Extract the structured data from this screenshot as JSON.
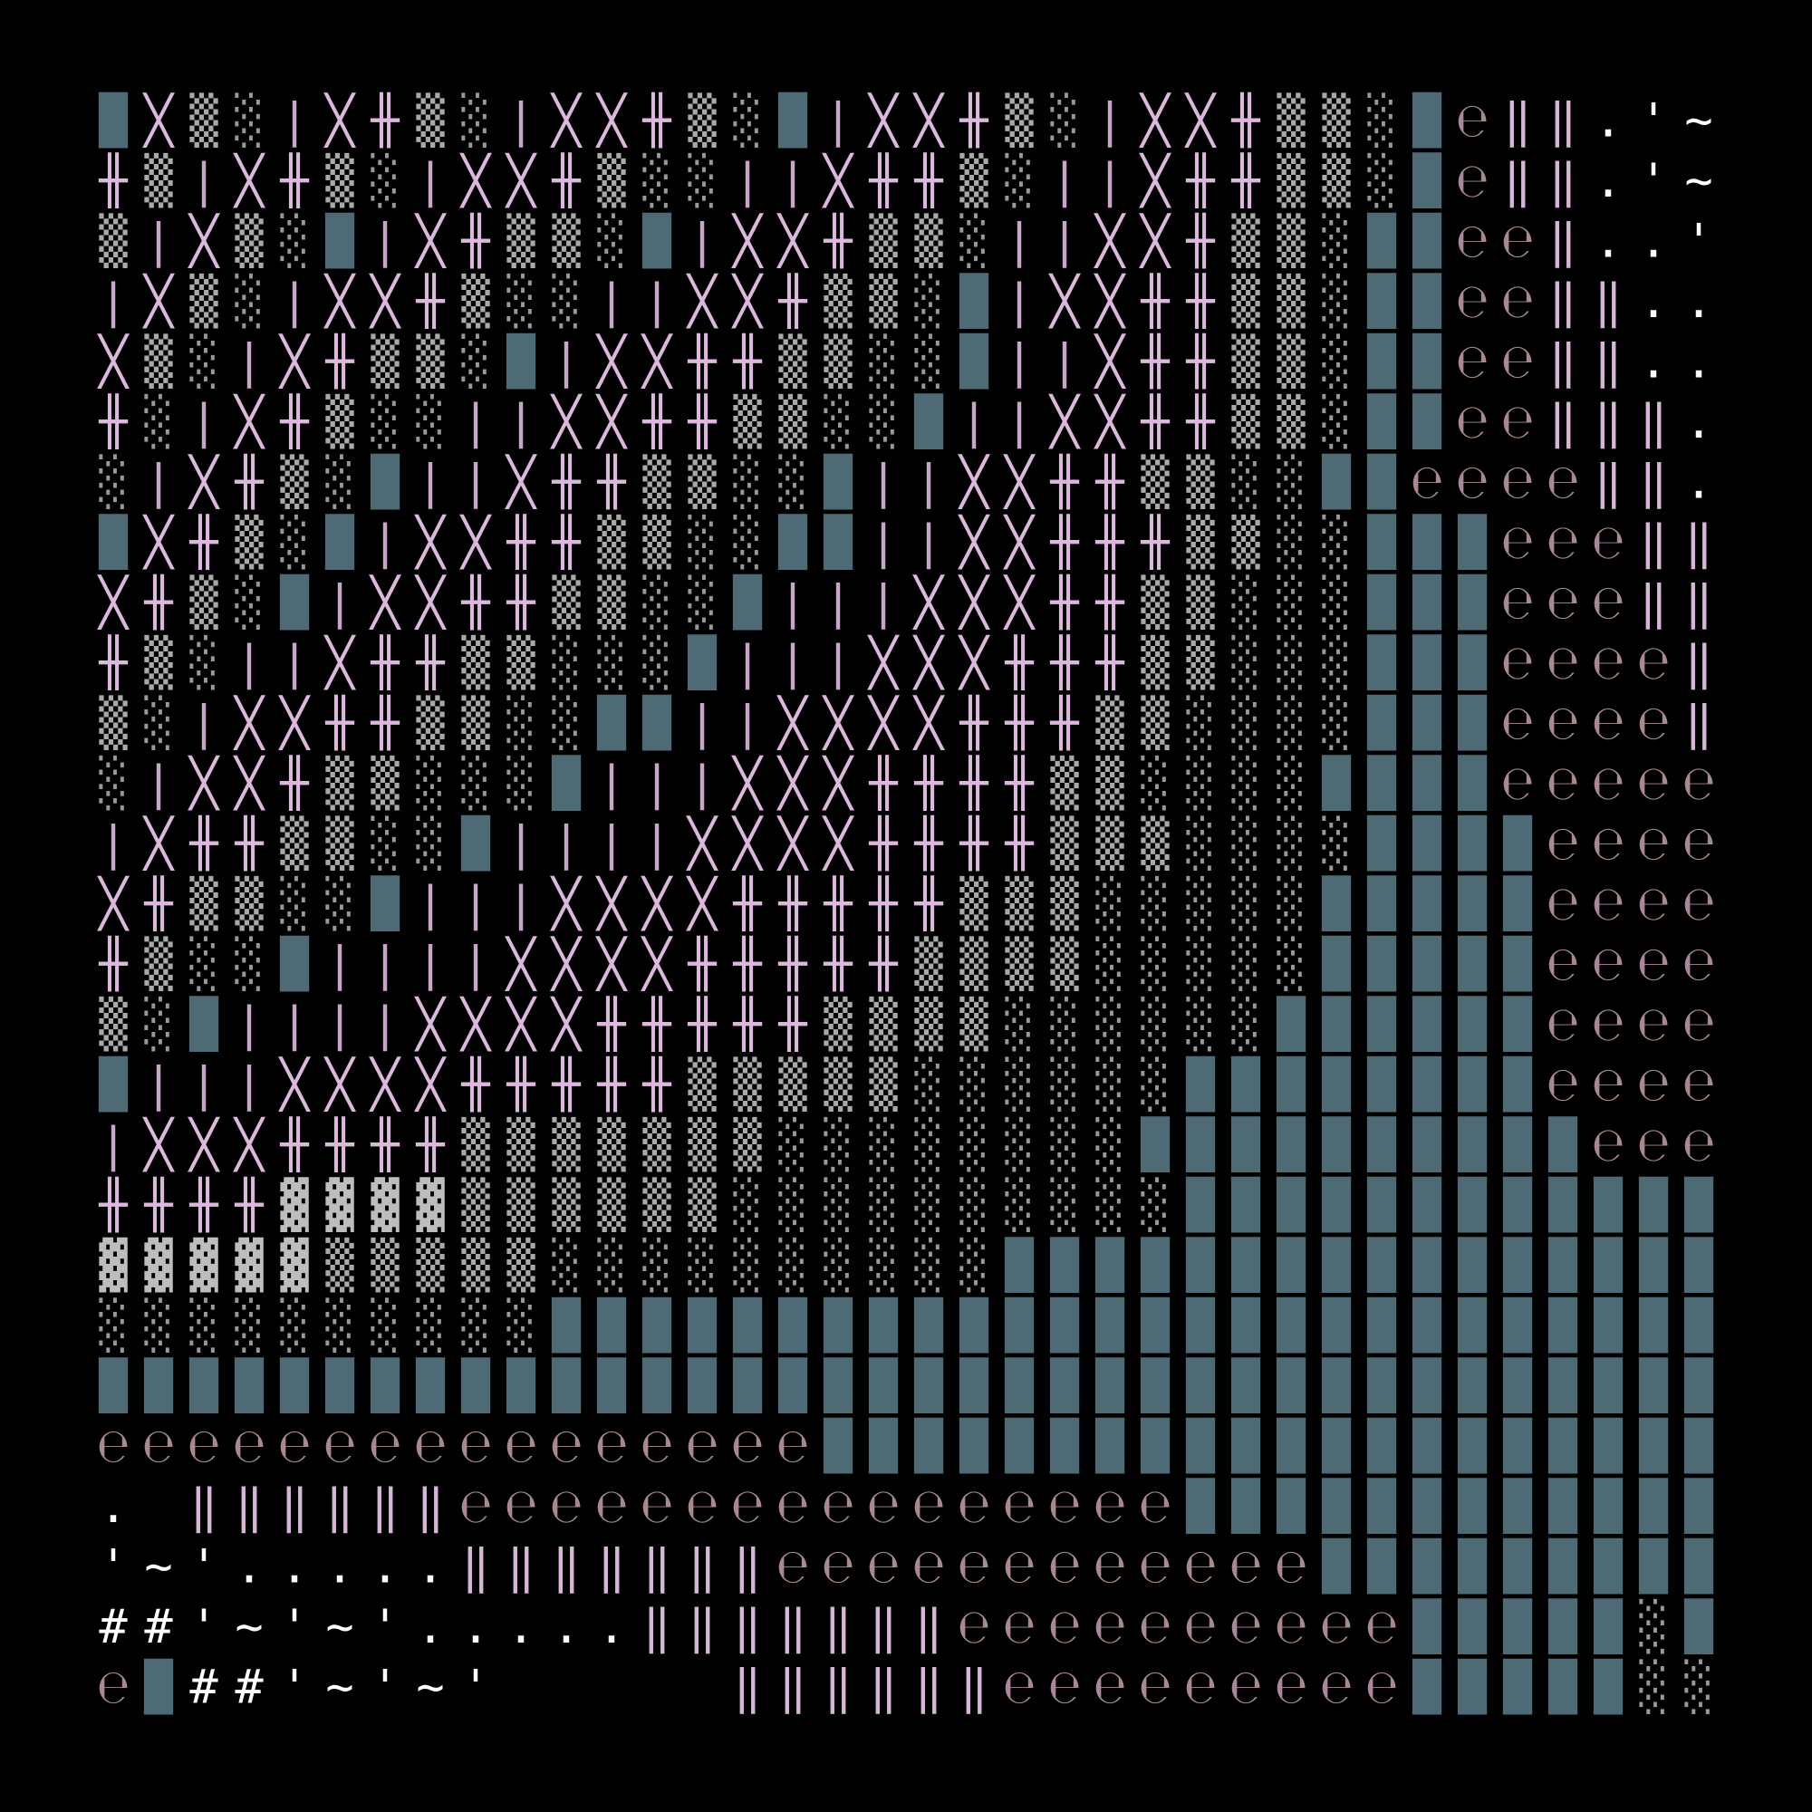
{
  "art": {
    "rows": [
      "█╳▒░|╳╫▒░|╳╳╫▒░█|╳╳╫▒░|╳╳╫▒▒░█℮‖‖.'~",
      "╫▒|╳╫▒░|╳╳╫▒░░||╳╫╫▒░||╳╫╫▒▒░█℮‖‖.'~",
      "▒|╳▒░█|╳╫▒▒░█|╳╳╫▒▒░||╳╳╫▒▒░██℮℮‖..'",
      "|╳▒░|╳╳╫▒░░||╳╳╫▒▒░█|╳╳╫╫▒▒░██℮℮‖‖..",
      "╳▒░|╳╫▒▒░█|╳╳╫╫▒▒░░█||╳╫╫▒▒░██℮℮‖‖..",
      "╫░|╳╫▒░░||╳╳╫╫▒▒░░█||╳╳╫╫▒▒░██℮℮‖‖‖.",
      "░|╳╫▒░█||╳╫╫▒▒░░█||╳╳╫╫▒▒░░██℮℮℮℮‖‖.",
      "█╳╫▒░█|╳╳╫╫▒▒░░██||╳╳╫╫╫▒▒░░███℮℮℮‖‖",
      "╳╫▒░█|╳╳╫╫▒▒░░█|||╳╳╳╫╫▒▒░░░███℮℮℮‖‖",
      "╫▒░||╳╫╫▒▒░░░█|||╳╳╳╫╫╫▒▒░░░███℮℮℮℮‖",
      "▒░|╳╳╫╫▒▒░░██||╳╳╳╳╫╫╫▒▒░░░░███℮℮℮℮‖",
      "░|╳╳╫▒▒░░░█|||╳╳╳╫╫╫╫▒▒░░░░████℮℮℮℮℮",
      "|╳╫╫▒▒░░█||||╳╳╳╳╫╫╫╫▒▒▒░░░░████℮℮℮℮",
      "╳╫▒▒░░█|||╳╳╳╳╫╫╫╫╫▒▒▒░░░░░█████℮℮℮℮",
      "╫▒░░█||||╳╳╳╳╫╫╫╫╫▒▒▒▒░░░░░█████℮℮℮℮",
      "▒░█||||╳╳╳╳╫╫╫╫╫▒▒▒▒░░░░░░██████℮℮℮℮",
      "█|||╳╳╳╳╫╫╫╫╫▒▒▒▒▒░░░░░░████████℮℮℮℮",
      "|╳╳╳╫╫╫╫▒▒▒▒▒▒▒░░░░░░░░██████████℮℮℮",
      "╫╫╫╫▓▓▓▓▒▒▒▒▒▒░░░░░░░░░░████████████",
      "▓▓▓▓▓▒▒▒▒▒░░░░░░░░░░████████████████",
      "░░░░░░░░░░██████████████████████████",
      "████████████████████████████████████",
      "℮℮℮℮℮℮℮℮℮℮℮℮℮℮℮℮████████████████████",
      ". ‖‖‖‖‖‖℮℮℮℮℮℮℮℮℮℮℮℮℮℮℮℮████████████",
      "'~'.....‖‖‖‖‖‖‖℮℮℮℮℮℮℮℮℮℮℮℮█████████",
      "##'~'~'.....‖‖‖‖‖‖‖℮℮℮℮℮℮℮℮℮℮█████░█",
      "℮█##'~'~'     ‖‖‖‖‖‖℮℮℮℮℮℮℮℮℮█████░░"
    ],
    "palette": {
      "█": "#4d6a75",
      "▓": "#bdbdbd",
      "▒": "#a9a9a9",
      "░": "#999999",
      "╳": "#dcb8dc",
      "╫": "#dcb8dc",
      "|": "#c7a6c7",
      "‖": "#d6b6d6",
      "℮": "#a88898",
      ".": "#ffffff",
      "'": "#ffffff",
      "~": "#ffffff",
      "#": "#ffffff"
    }
  }
}
